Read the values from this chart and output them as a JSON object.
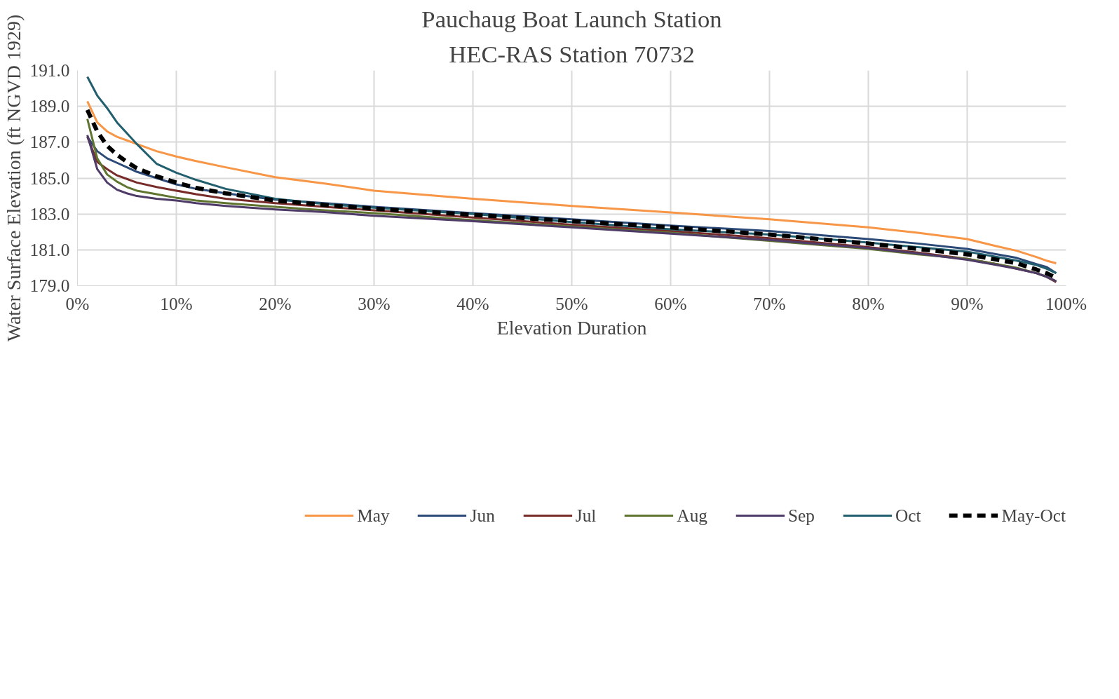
{
  "chart_data": {
    "type": "line",
    "title": "Pauchaug Boat Launch Station",
    "subtitle": "HEC-RAS Station 70732",
    "xlabel": "Elevation Duration",
    "ylabel": "Water Surface Elevation (ft NGVD 1929)",
    "x": [
      1,
      2,
      3,
      4,
      5,
      6,
      8,
      10,
      12,
      15,
      20,
      25,
      30,
      40,
      50,
      60,
      70,
      80,
      85,
      90,
      93,
      95,
      97,
      98,
      99
    ],
    "xlim": [
      0,
      100
    ],
    "xticks": [
      {
        "value": 0,
        "label": "0%"
      },
      {
        "value": 10,
        "label": "10%"
      },
      {
        "value": 20,
        "label": "20%"
      },
      {
        "value": 30,
        "label": "30%"
      },
      {
        "value": 40,
        "label": "40%"
      },
      {
        "value": 50,
        "label": "50%"
      },
      {
        "value": 60,
        "label": "60%"
      },
      {
        "value": 70,
        "label": "70%"
      },
      {
        "value": 80,
        "label": "80%"
      },
      {
        "value": 90,
        "label": "90%"
      },
      {
        "value": 100,
        "label": "100%"
      }
    ],
    "ylim": [
      179,
      191
    ],
    "yticks": [
      {
        "value": 179,
        "label": "179.0"
      },
      {
        "value": 181,
        "label": "181.0"
      },
      {
        "value": 183,
        "label": "183.0"
      },
      {
        "value": 185,
        "label": "185.0"
      },
      {
        "value": 187,
        "label": "187.0"
      },
      {
        "value": 189,
        "label": "189.0"
      },
      {
        "value": 191,
        "label": "191.0"
      }
    ],
    "grid": true,
    "legend": "bottom",
    "marker": "none",
    "series": [
      {
        "name": "May",
        "color": "#f79646",
        "values": [
          189.28,
          188.1,
          187.6,
          187.3,
          187.1,
          186.9,
          186.5,
          186.2,
          185.95,
          185.6,
          185.05,
          184.7,
          184.3,
          183.85,
          183.45,
          183.08,
          182.7,
          182.25,
          181.95,
          181.6,
          181.2,
          180.95,
          180.6,
          180.4,
          180.25
        ]
      },
      {
        "name": "Jun",
        "color": "#2c4a78",
        "values": [
          187.3,
          186.5,
          186.1,
          185.85,
          185.6,
          185.35,
          185.0,
          184.65,
          184.4,
          184.15,
          183.8,
          183.6,
          183.4,
          183.05,
          182.7,
          182.35,
          182.05,
          181.6,
          181.35,
          181.05,
          180.75,
          180.55,
          180.2,
          180.05,
          179.7
        ]
      },
      {
        "name": "Jul",
        "color": "#772c2a",
        "values": [
          187.3,
          185.9,
          185.5,
          185.15,
          184.95,
          184.75,
          184.5,
          184.3,
          184.1,
          183.85,
          183.6,
          183.4,
          183.2,
          182.8,
          182.4,
          182.05,
          181.65,
          181.15,
          180.85,
          180.5,
          180.2,
          179.95,
          179.7,
          179.5,
          179.2
        ]
      },
      {
        "name": "Aug",
        "color": "#5f7530",
        "values": [
          188.3,
          186.1,
          185.2,
          184.8,
          184.5,
          184.3,
          184.1,
          183.9,
          183.75,
          183.6,
          183.4,
          183.2,
          183.05,
          182.65,
          182.3,
          181.95,
          181.5,
          181.05,
          180.75,
          180.5,
          180.2,
          180.0,
          179.7,
          179.5,
          179.25
        ]
      },
      {
        "name": "Sep",
        "color": "#4f3b68",
        "values": [
          187.4,
          185.5,
          184.75,
          184.35,
          184.15,
          184.0,
          183.85,
          183.75,
          183.6,
          183.45,
          183.25,
          183.1,
          182.9,
          182.6,
          182.25,
          181.9,
          181.55,
          181.1,
          180.8,
          180.45,
          180.15,
          179.95,
          179.7,
          179.5,
          179.25
        ]
      },
      {
        "name": "Oct",
        "color": "#215f6e",
        "values": [
          190.65,
          189.6,
          188.9,
          188.1,
          187.5,
          186.9,
          185.8,
          185.3,
          184.9,
          184.4,
          183.85,
          183.55,
          183.35,
          183.0,
          182.55,
          182.15,
          181.85,
          181.4,
          181.15,
          180.9,
          180.6,
          180.4,
          180.15,
          179.95,
          179.7
        ]
      },
      {
        "name": "May-Oct",
        "color": "#000000",
        "line_style": "dashed",
        "values": [
          188.8,
          187.6,
          186.8,
          186.3,
          185.9,
          185.55,
          185.1,
          184.75,
          184.45,
          184.15,
          183.75,
          183.5,
          183.3,
          182.95,
          182.6,
          182.25,
          181.85,
          181.35,
          181.05,
          180.75,
          180.45,
          180.25,
          179.9,
          179.7,
          179.45
        ]
      }
    ]
  }
}
